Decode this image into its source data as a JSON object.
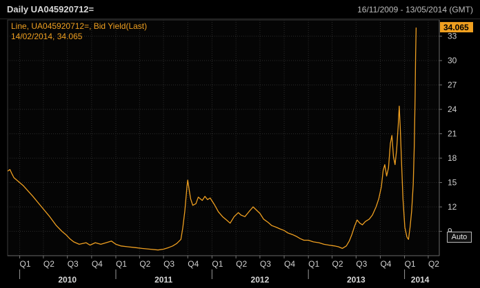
{
  "header": {
    "title": "Daily UA045920712=",
    "date_range": "16/11/2009 - 13/05/2014 (GMT)"
  },
  "legend": {
    "line1": "Line, UA045920712=, Bid Yield(Last)",
    "line2": "14/02/2014, 34.065"
  },
  "last_value_label": "34.065",
  "auto_button": "Auto",
  "colors": {
    "series": "#f0a020",
    "background": "#000000",
    "grid": "#2c2c2c"
  },
  "chart_data": {
    "type": "line",
    "title": "Daily UA045920712=",
    "series_name": "",
    "xlabel": "",
    "ylabel": "",
    "x_range": [
      "2009-11-16",
      "2014-05-13"
    ],
    "ylim": [
      6,
      35
    ],
    "y_ticks": [
      9,
      12,
      15,
      18,
      21,
      24,
      27,
      30,
      33
    ],
    "quarter_ticks": [
      {
        "label": "Q1",
        "date": "2010-01-01"
      },
      {
        "label": "Q2",
        "date": "2010-04-01"
      },
      {
        "label": "Q3",
        "date": "2010-07-01"
      },
      {
        "label": "Q4",
        "date": "2010-10-01"
      },
      {
        "label": "Q1",
        "date": "2011-01-01"
      },
      {
        "label": "Q2",
        "date": "2011-04-01"
      },
      {
        "label": "Q3",
        "date": "2011-07-01"
      },
      {
        "label": "Q4",
        "date": "2011-10-01"
      },
      {
        "label": "Q1",
        "date": "2012-01-01"
      },
      {
        "label": "Q2",
        "date": "2012-04-01"
      },
      {
        "label": "Q3",
        "date": "2012-07-01"
      },
      {
        "label": "Q4",
        "date": "2012-10-01"
      },
      {
        "label": "Q1",
        "date": "2013-01-01"
      },
      {
        "label": "Q2",
        "date": "2013-04-01"
      },
      {
        "label": "Q3",
        "date": "2013-07-01"
      },
      {
        "label": "Q4",
        "date": "2013-10-01"
      },
      {
        "label": "Q1",
        "date": "2014-01-01"
      },
      {
        "label": "Q2",
        "date": "2014-04-01"
      }
    ],
    "year_labels": [
      {
        "label": "2010",
        "date": "2010-07-01"
      },
      {
        "label": "2011",
        "date": "2011-07-01"
      },
      {
        "label": "2012",
        "date": "2012-07-01"
      },
      {
        "label": "2013",
        "date": "2013-07-01"
      },
      {
        "label": "2014",
        "date": "2014-03-01"
      }
    ],
    "year_dividers": [
      "2010-01-01",
      "2011-01-01",
      "2012-01-01",
      "2013-01-01",
      "2014-01-01"
    ],
    "grid": true,
    "points": [
      [
        "2009-11-16",
        16.4
      ],
      [
        "2009-11-25",
        16.6
      ],
      [
        "2009-12-02",
        16.1
      ],
      [
        "2009-12-10",
        15.6
      ],
      [
        "2010-01-15",
        14.6
      ],
      [
        "2010-02-20",
        13.3
      ],
      [
        "2010-03-25",
        12.0
      ],
      [
        "2010-04-25",
        10.8
      ],
      [
        "2010-05-20",
        9.7
      ],
      [
        "2010-06-10",
        9.0
      ],
      [
        "2010-06-25",
        8.6
      ],
      [
        "2010-07-10",
        8.1
      ],
      [
        "2010-07-25",
        7.7
      ],
      [
        "2010-08-15",
        7.4
      ],
      [
        "2010-09-10",
        7.6
      ],
      [
        "2010-09-25",
        7.3
      ],
      [
        "2010-10-15",
        7.6
      ],
      [
        "2010-11-05",
        7.4
      ],
      [
        "2010-11-25",
        7.6
      ],
      [
        "2010-12-15",
        7.8
      ],
      [
        "2011-01-01",
        7.4
      ],
      [
        "2011-01-20",
        7.2
      ],
      [
        "2011-02-15",
        7.1
      ],
      [
        "2011-03-15",
        7.0
      ],
      [
        "2011-04-10",
        6.9
      ],
      [
        "2011-05-10",
        6.8
      ],
      [
        "2011-06-10",
        6.7
      ],
      [
        "2011-07-01",
        6.8
      ],
      [
        "2011-07-20",
        7.0
      ],
      [
        "2011-08-05",
        7.2
      ],
      [
        "2011-08-20",
        7.5
      ],
      [
        "2011-09-05",
        8.0
      ],
      [
        "2011-09-12",
        9.4
      ],
      [
        "2011-09-20",
        11.5
      ],
      [
        "2011-09-28",
        14.5
      ],
      [
        "2011-10-01",
        15.3
      ],
      [
        "2011-10-07",
        14.0
      ],
      [
        "2011-10-12",
        13.0
      ],
      [
        "2011-10-20",
        12.2
      ],
      [
        "2011-11-01",
        12.4
      ],
      [
        "2011-11-10",
        13.2
      ],
      [
        "2011-11-25",
        12.8
      ],
      [
        "2011-12-05",
        13.3
      ],
      [
        "2011-12-15",
        12.9
      ],
      [
        "2011-12-25",
        13.1
      ],
      [
        "2012-01-10",
        12.3
      ],
      [
        "2012-01-25",
        11.4
      ],
      [
        "2012-02-10",
        10.8
      ],
      [
        "2012-02-25",
        10.4
      ],
      [
        "2012-03-10",
        10.0
      ],
      [
        "2012-03-25",
        10.8
      ],
      [
        "2012-04-10",
        11.3
      ],
      [
        "2012-04-20",
        11.0
      ],
      [
        "2012-05-05",
        10.8
      ],
      [
        "2012-05-20",
        11.4
      ],
      [
        "2012-06-05",
        12.0
      ],
      [
        "2012-06-15",
        11.7
      ],
      [
        "2012-07-01",
        11.2
      ],
      [
        "2012-07-15",
        10.5
      ],
      [
        "2012-08-01",
        10.1
      ],
      [
        "2012-08-15",
        9.7
      ],
      [
        "2012-09-01",
        9.5
      ],
      [
        "2012-09-15",
        9.3
      ],
      [
        "2012-10-01",
        9.1
      ],
      [
        "2012-10-15",
        8.8
      ],
      [
        "2012-11-01",
        8.6
      ],
      [
        "2012-11-15",
        8.4
      ],
      [
        "2012-12-01",
        8.1
      ],
      [
        "2012-12-15",
        7.9
      ],
      [
        "2013-01-01",
        7.9
      ],
      [
        "2013-01-20",
        7.7
      ],
      [
        "2013-02-10",
        7.6
      ],
      [
        "2013-03-01",
        7.4
      ],
      [
        "2013-03-20",
        7.3
      ],
      [
        "2013-04-10",
        7.2
      ],
      [
        "2013-04-25",
        7.1
      ],
      [
        "2013-05-10",
        6.9
      ],
      [
        "2013-05-25",
        7.2
      ],
      [
        "2013-06-05",
        7.8
      ],
      [
        "2013-06-15",
        8.6
      ],
      [
        "2013-06-25",
        9.6
      ],
      [
        "2013-07-05",
        10.4
      ],
      [
        "2013-07-15",
        10.0
      ],
      [
        "2013-07-25",
        9.8
      ],
      [
        "2013-08-05",
        10.2
      ],
      [
        "2013-08-20",
        10.5
      ],
      [
        "2013-09-01",
        11.0
      ],
      [
        "2013-09-15",
        12.0
      ],
      [
        "2013-09-25",
        13.0
      ],
      [
        "2013-10-05",
        14.5
      ],
      [
        "2013-10-12",
        16.5
      ],
      [
        "2013-10-18",
        17.2
      ],
      [
        "2013-10-25",
        15.8
      ],
      [
        "2013-11-01",
        16.8
      ],
      [
        "2013-11-08",
        19.8
      ],
      [
        "2013-11-14",
        20.8
      ],
      [
        "2013-11-20",
        18.2
      ],
      [
        "2013-11-26",
        17.2
      ],
      [
        "2013-12-02",
        19.0
      ],
      [
        "2013-12-08",
        22.0
      ],
      [
        "2013-12-12",
        24.4
      ],
      [
        "2013-12-16",
        21.5
      ],
      [
        "2013-12-20",
        18.0
      ],
      [
        "2013-12-26",
        13.0
      ],
      [
        "2014-01-02",
        9.5
      ],
      [
        "2014-01-10",
        8.3
      ],
      [
        "2014-01-16",
        8.0
      ],
      [
        "2014-01-22",
        9.5
      ],
      [
        "2014-01-28",
        11.5
      ],
      [
        "2014-02-03",
        14.8
      ],
      [
        "2014-02-07",
        19.5
      ],
      [
        "2014-02-10",
        25.5
      ],
      [
        "2014-02-12",
        30.5
      ],
      [
        "2014-02-14",
        34.065
      ]
    ]
  }
}
